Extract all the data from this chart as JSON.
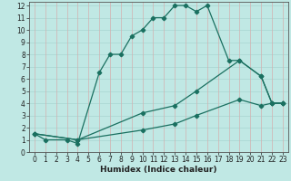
{
  "xlabel": "Humidex (Indice chaleur)",
  "background_color": "#c0e8e4",
  "line_color": "#1a7060",
  "xlim": [
    0,
    23
  ],
  "ylim": [
    0,
    12
  ],
  "xticks": [
    0,
    1,
    2,
    3,
    4,
    5,
    6,
    7,
    8,
    9,
    10,
    11,
    12,
    13,
    14,
    15,
    16,
    17,
    18,
    19,
    20,
    21,
    22,
    23
  ],
  "yticks": [
    0,
    1,
    2,
    3,
    4,
    5,
    6,
    7,
    8,
    9,
    10,
    11,
    12
  ],
  "line1_x": [
    0,
    1,
    3,
    4,
    6,
    7,
    8,
    9,
    10,
    11,
    12,
    13,
    14,
    15,
    16,
    18,
    19,
    21,
    22,
    23
  ],
  "line1_y": [
    1.5,
    1.0,
    1.0,
    0.7,
    6.5,
    8.0,
    8.0,
    9.5,
    10.0,
    11.0,
    11.0,
    12.0,
    12.0,
    11.5,
    12.0,
    7.5,
    7.5,
    6.2,
    4.0,
    4.0
  ],
  "line2_x": [
    0,
    4,
    10,
    13,
    15,
    19,
    21,
    22,
    23
  ],
  "line2_y": [
    1.5,
    1.0,
    3.2,
    3.8,
    5.0,
    7.5,
    6.2,
    4.0,
    4.0
  ],
  "line3_x": [
    0,
    4,
    10,
    13,
    15,
    19,
    21,
    22,
    23
  ],
  "line3_y": [
    1.5,
    1.0,
    1.8,
    2.3,
    3.0,
    4.3,
    3.8,
    4.0,
    4.0
  ],
  "grid_h_color": "#a8d4d0",
  "grid_v_color": "#d4b0b0",
  "tick_fontsize": 5.5,
  "xlabel_fontsize": 6.5
}
